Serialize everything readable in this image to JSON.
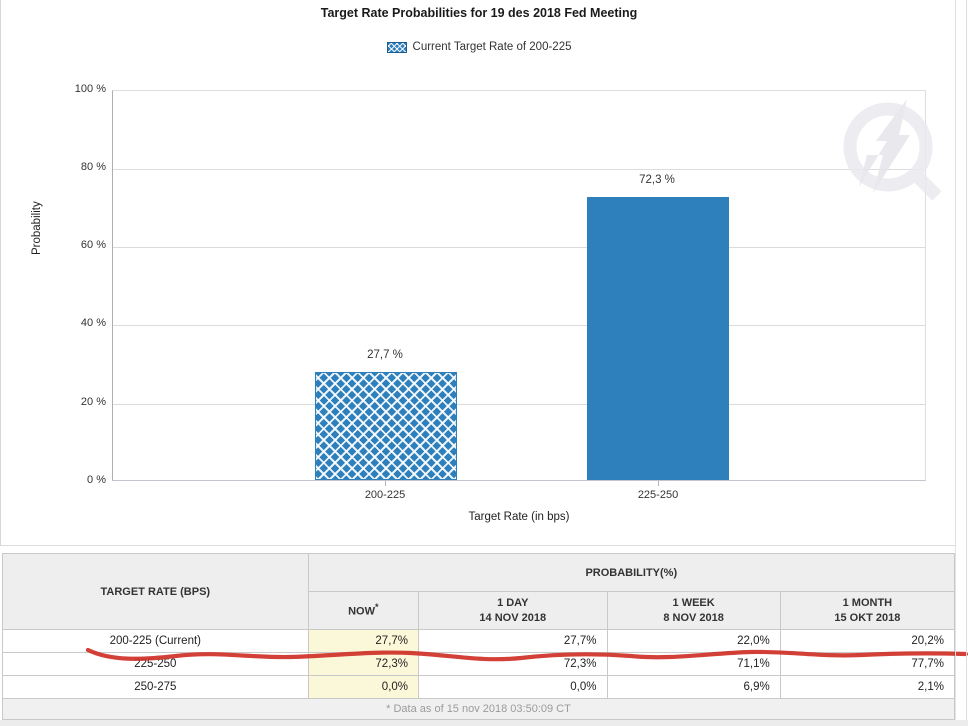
{
  "chart": {
    "title": "Target Rate Probabilities for 19 des 2018 Fed Meeting",
    "legend": {
      "label": "Current Target Rate of 200-225"
    },
    "y_axis": {
      "label": "Probability",
      "ticks": [
        "100 %",
        "80 %",
        "60 %",
        "40 %",
        "20 %",
        "0 %"
      ]
    },
    "x_axis": {
      "label": "Target Rate (in bps)",
      "categories": [
        "200-225",
        "225-250"
      ]
    },
    "bar_labels": [
      "27,7 %",
      "72,3 %"
    ],
    "colors": {
      "bar_blue": "#2e80bd",
      "grid": "#dcdcdc",
      "now_highlight": "#fbf8d9",
      "annotation_red": "#d03228"
    }
  },
  "chart_data": {
    "type": "bar",
    "title": "Target Rate Probabilities for 19 des 2018 Fed Meeting",
    "categories": [
      "200-225",
      "225-250"
    ],
    "values": [
      27.7,
      72.3
    ],
    "bar_styles": [
      "hatched",
      "solid"
    ],
    "bar_labels": [
      "27,7 %",
      "72,3 %"
    ],
    "xlabel": "Target Rate (in bps)",
    "ylabel": "Probability",
    "ylim": [
      0,
      100
    ],
    "ytick_step": 20,
    "grid": true,
    "legend": [
      "Current Target Rate of 200-225"
    ],
    "legend_position": "top-center",
    "table": {
      "categories": [
        "200-225 (Current)",
        "225-250",
        "250-275"
      ],
      "series": [
        {
          "name": "NOW",
          "values": [
            27.7,
            72.3,
            0.0
          ]
        },
        {
          "name": "1 DAY 14 NOV 2018",
          "values": [
            27.7,
            72.3,
            0.0
          ]
        },
        {
          "name": "1 WEEK 8 NOV 2018",
          "values": [
            22.0,
            71.1,
            6.9
          ]
        },
        {
          "name": "1 MONTH 15 OKT 2018",
          "values": [
            20.2,
            77.7,
            2.1
          ]
        }
      ]
    }
  },
  "table": {
    "col1_header": "TARGET RATE (BPS)",
    "group_header": "PROBABILITY(%)",
    "columns": [
      {
        "l1": "NOW",
        "sup": "*",
        "l2": ""
      },
      {
        "l1": "1 DAY",
        "l2": "14 NOV 2018"
      },
      {
        "l1": "1 WEEK",
        "l2": "8 NOV 2018"
      },
      {
        "l1": "1 MONTH",
        "l2": "15 OKT 2018"
      }
    ],
    "rows": [
      {
        "rate": "200-225 (Current)",
        "now": "27,7%",
        "day": "27,7%",
        "week": "22,0%",
        "month": "20,2%"
      },
      {
        "rate": "225-250",
        "now": "72,3%",
        "day": "72,3%",
        "week": "71,1%",
        "month": "77,7%"
      },
      {
        "rate": "250-275",
        "now": "0,0%",
        "day": "0,0%",
        "week": "6,9%",
        "month": "2,1%"
      }
    ],
    "footnote": "* Data as of 15 nov 2018 03:50:09 CT"
  }
}
